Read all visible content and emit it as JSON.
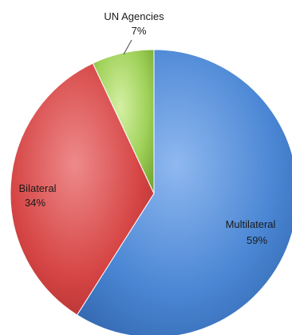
{
  "chart_data": {
    "type": "pie",
    "slices": [
      {
        "label": "Multilateral",
        "value_label": "59%",
        "value": 59,
        "color": "#4a86d4"
      },
      {
        "label": "Bilateral",
        "value_label": "34%",
        "value": 34,
        "color": "#d64545"
      },
      {
        "label": "UN Agencies",
        "value_label": "7%",
        "value": 7,
        "color": "#9fd159"
      }
    ]
  }
}
